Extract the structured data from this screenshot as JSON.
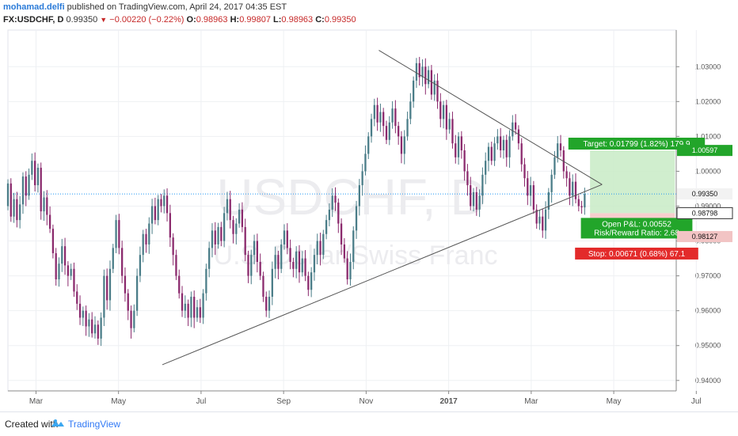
{
  "header": {
    "author": "mohamad.delfi",
    "published_text": " published on TradingView.com, April 24, 2017 04:35 EST",
    "symbol": "FX:USDCHF, D",
    "last": "0.99350",
    "change": "−0.00220 (−0.22%)",
    "open_label": "O:",
    "open": "0.98963",
    "high_label": "H:",
    "high": "0.99807",
    "low_label": "L:",
    "low": "0.98963",
    "close_label": "C:",
    "close": "0.99350"
  },
  "watermark": {
    "symbol": "USDCHF, D",
    "name": "U.S. Dollar/Swiss Franc"
  },
  "footer": {
    "created_with": "Created with",
    "brand": "TradingView"
  },
  "colors": {
    "up": "#4a7d88",
    "down": "#8b2a6d",
    "target": "#22a52a",
    "stop": "#e32b2b",
    "trendline": "#555555",
    "gridline": "#eef0f3",
    "lastprice": "#2196f3"
  },
  "chart_data": {
    "type": "candlestick",
    "x_ticks": [
      "Mar",
      "May",
      "Jul",
      "Sep",
      "Nov",
      "2017",
      "Mar",
      "May",
      "Jul"
    ],
    "y_ticks": [
      "1.03000",
      "1.02000",
      "1.01000",
      "1.00000",
      "0.99000",
      "0.98000",
      "0.97000",
      "0.96000",
      "0.95000",
      "0.94000"
    ],
    "ylim": [
      0.937,
      1.0405
    ],
    "price_labels": [
      {
        "value": 1.00597,
        "text": "1.00597",
        "color": "#22a52a"
      },
      {
        "value": 0.9935,
        "text": "0.99350",
        "color": "#f5f5f5"
      },
      {
        "value": 0.98798,
        "text": "0.98798",
        "color": "#111111"
      },
      {
        "value": 0.98127,
        "text": "0.98127",
        "color": "#f5f5f5"
      }
    ],
    "position": {
      "target_text": "Target: 0.01799 (1.82%) 179.9",
      "open_pl_text": "Open P&L: 0.00552",
      "rr_text": "Risk/Reward Ratio: 2.68",
      "stop_text": "Stop: 0.00671 (0.68%) 67.1",
      "entry": 0.98798,
      "target": 1.00597,
      "stop": 0.98127
    },
    "series": [
      {
        "path": [
          [
            0.99,
            0.9965
          ],
          [
            0.9965,
            0.987
          ],
          [
            0.987,
            0.992
          ],
          [
            0.992,
            0.986
          ],
          [
            0.986,
            0.9905
          ],
          [
            0.9905,
            0.9985
          ],
          [
            0.9985,
            0.993
          ],
          [
            0.993,
            0.999
          ],
          [
            0.999,
            1.003
          ],
          [
            1.003,
            0.996
          ],
          [
            0.996,
            1.001
          ],
          [
            1.001,
            0.9885
          ],
          [
            0.9885,
            0.9925
          ],
          [
            0.9925,
            0.9875
          ],
          [
            0.9875,
            0.9835
          ],
          [
            0.9835,
            0.9765
          ],
          [
            0.9765,
            0.969
          ],
          [
            0.969,
            0.9735
          ],
          [
            0.9735,
            0.9785
          ],
          [
            0.9785,
            0.973
          ],
          [
            0.973,
            0.97
          ],
          [
            0.97,
            0.972
          ],
          [
            0.972,
            0.9655
          ],
          [
            0.9655,
            0.962
          ],
          [
            0.962,
            0.958
          ],
          [
            0.958,
            0.96
          ],
          [
            0.96,
            0.9555
          ],
          [
            0.9555,
            0.9575
          ],
          [
            0.9575,
            0.9535
          ],
          [
            0.9535,
            0.956
          ],
          [
            0.956,
            0.952
          ],
          [
            0.952,
            0.958
          ],
          [
            0.958,
            0.97
          ],
          [
            0.97,
            0.963
          ],
          [
            0.963,
            0.972
          ],
          [
            0.972,
            0.978
          ],
          [
            0.978,
            0.986
          ],
          [
            0.986,
            0.978
          ],
          [
            0.978,
            0.97
          ],
          [
            0.97,
            0.965
          ],
          [
            0.965,
            0.96
          ],
          [
            0.96,
            0.955
          ],
          [
            0.955,
            0.96
          ],
          [
            0.96,
            0.97
          ],
          [
            0.97,
            0.976
          ],
          [
            0.976,
            0.982
          ],
          [
            0.982,
            0.979
          ],
          [
            0.979,
            0.985
          ],
          [
            0.985,
            0.99
          ],
          [
            0.99,
            0.986
          ],
          [
            0.986,
            0.992
          ],
          [
            0.992,
            0.99
          ],
          [
            0.99,
            0.993
          ],
          [
            0.993,
            0.988
          ],
          [
            0.988,
            0.981
          ],
          [
            0.981,
            0.976
          ],
          [
            0.976,
            0.97
          ],
          [
            0.97,
            0.965
          ],
          [
            0.965,
            0.96
          ],
          [
            0.96,
            0.962
          ],
          [
            0.962,
            0.958
          ],
          [
            0.958,
            0.964
          ],
          [
            0.964,
            0.958
          ],
          [
            0.958,
            0.961
          ],
          [
            0.961,
            0.958
          ],
          [
            0.958,
            0.965
          ],
          [
            0.965,
            0.972
          ],
          [
            0.972,
            0.978
          ],
          [
            0.978,
            0.983
          ],
          [
            0.983,
            0.979
          ],
          [
            0.979,
            0.984
          ],
          [
            0.984,
            0.98
          ],
          [
            0.98,
            0.988
          ],
          [
            0.988,
            0.992
          ],
          [
            0.992,
            0.986
          ],
          [
            0.986,
            0.982
          ],
          [
            0.982,
            0.985
          ],
          [
            0.985,
            0.989
          ],
          [
            0.989,
            0.984
          ],
          [
            0.984,
            0.976
          ],
          [
            0.976,
            0.97
          ],
          [
            0.97,
            0.976
          ],
          [
            0.976,
            0.98
          ],
          [
            0.98,
            0.974
          ],
          [
            0.974,
            0.97
          ],
          [
            0.97,
            0.964
          ],
          [
            0.964,
            0.96
          ],
          [
            0.96,
            0.964
          ],
          [
            0.964,
            0.972
          ],
          [
            0.972,
            0.976
          ],
          [
            0.976,
            0.972
          ],
          [
            0.972,
            0.979
          ],
          [
            0.979,
            0.983
          ],
          [
            0.983,
            0.978
          ],
          [
            0.978,
            0.974
          ],
          [
            0.974,
            0.972
          ],
          [
            0.972,
            0.977
          ],
          [
            0.977,
            0.971
          ],
          [
            0.971,
            0.975
          ],
          [
            0.975,
            0.97
          ],
          [
            0.97,
            0.966
          ],
          [
            0.966,
            0.971
          ],
          [
            0.971,
            0.976
          ],
          [
            0.976,
            0.98
          ],
          [
            0.98,
            0.976
          ],
          [
            0.976,
            0.982
          ],
          [
            0.982,
            0.986
          ],
          [
            0.986,
            0.989
          ],
          [
            0.989,
            0.993
          ],
          [
            0.993,
            0.991
          ],
          [
            0.991,
            0.985
          ],
          [
            0.985,
            0.979
          ],
          [
            0.979,
            0.975
          ],
          [
            0.975,
            0.969
          ],
          [
            0.969,
            0.974
          ],
          [
            0.974,
            0.983
          ],
          [
            0.983,
            0.99
          ],
          [
            0.99,
            0.996
          ],
          [
            0.996,
            1.0
          ],
          [
            1.0,
            1.005
          ],
          [
            1.005,
            1.01
          ],
          [
            1.01,
            1.015
          ],
          [
            1.015,
            1.019
          ],
          [
            1.019,
            1.014
          ],
          [
            1.014,
            1.017
          ],
          [
            1.017,
            1.013
          ],
          [
            1.013,
            1.009
          ],
          [
            1.009,
            1.014
          ],
          [
            1.014,
            1.018
          ],
          [
            1.018,
            1.013
          ],
          [
            1.013,
            1.01
          ],
          [
            1.01,
            1.005
          ],
          [
            1.005,
            1.01
          ],
          [
            1.01,
            1.015
          ],
          [
            1.015,
            1.02
          ],
          [
            1.02,
            1.026
          ],
          [
            1.026,
            1.031
          ],
          [
            1.031,
            1.027
          ],
          [
            1.027,
            1.03
          ],
          [
            1.03,
            1.025
          ],
          [
            1.025,
            1.029
          ],
          [
            1.029,
            1.022
          ],
          [
            1.022,
            1.026
          ],
          [
            1.026,
            1.02
          ],
          [
            1.02,
            1.015
          ],
          [
            1.015,
            1.019
          ],
          [
            1.019,
            1.012
          ],
          [
            1.012,
            1.015
          ],
          [
            1.015,
            1.008
          ],
          [
            1.008,
            1.004
          ],
          [
            1.004,
            1.01
          ],
          [
            1.01,
            1.006
          ],
          [
            1.006,
            1.0
          ],
          [
            1.0,
            0.996
          ],
          [
            0.996,
            0.99
          ],
          [
            0.99,
            0.994
          ],
          [
            0.994,
            0.989
          ],
          [
            0.989,
            0.993
          ],
          [
            0.993,
            0.999
          ],
          [
            0.999,
            1.003
          ],
          [
            1.003,
            1.007
          ],
          [
            1.007,
            1.003
          ],
          [
            1.003,
            1.008
          ],
          [
            1.008,
            1.01
          ],
          [
            1.01,
            1.006
          ],
          [
            1.006,
            1.009
          ],
          [
            1.009,
            1.004
          ],
          [
            1.004,
            1.01
          ],
          [
            1.01,
            1.014
          ],
          [
            1.014,
            1.012
          ],
          [
            1.012,
            1.008
          ],
          [
            1.008,
            1.002
          ],
          [
            1.002,
            0.998
          ],
          [
            0.998,
            0.993
          ],
          [
            0.993,
            0.996
          ],
          [
            0.996,
            0.989
          ],
          [
            0.989,
            0.985
          ],
          [
            0.985,
            0.987
          ],
          [
            0.987,
            0.983
          ],
          [
            0.983,
            0.989
          ],
          [
            0.989,
            0.994
          ],
          [
            0.994,
            0.999
          ],
          [
            0.999,
            1.004
          ],
          [
            1.004,
            1.008
          ],
          [
            1.008,
            1.006
          ],
          [
            1.006,
            1.0
          ],
          [
            1.0,
            0.998
          ],
          [
            0.998,
            0.993
          ],
          [
            0.993,
            0.997
          ],
          [
            0.997,
            0.992
          ],
          [
            0.992,
            0.99
          ],
          [
            0.99,
            0.98963
          ],
          [
            0.98963,
            0.9935
          ]
        ]
      }
    ],
    "trendlines": [
      {
        "from": [
          0.231,
          0.9445
        ],
        "to": [
          0.889,
          0.9962
        ]
      },
      {
        "from": [
          0.555,
          1.0347
        ],
        "to": [
          0.889,
          0.9962
        ]
      }
    ]
  }
}
